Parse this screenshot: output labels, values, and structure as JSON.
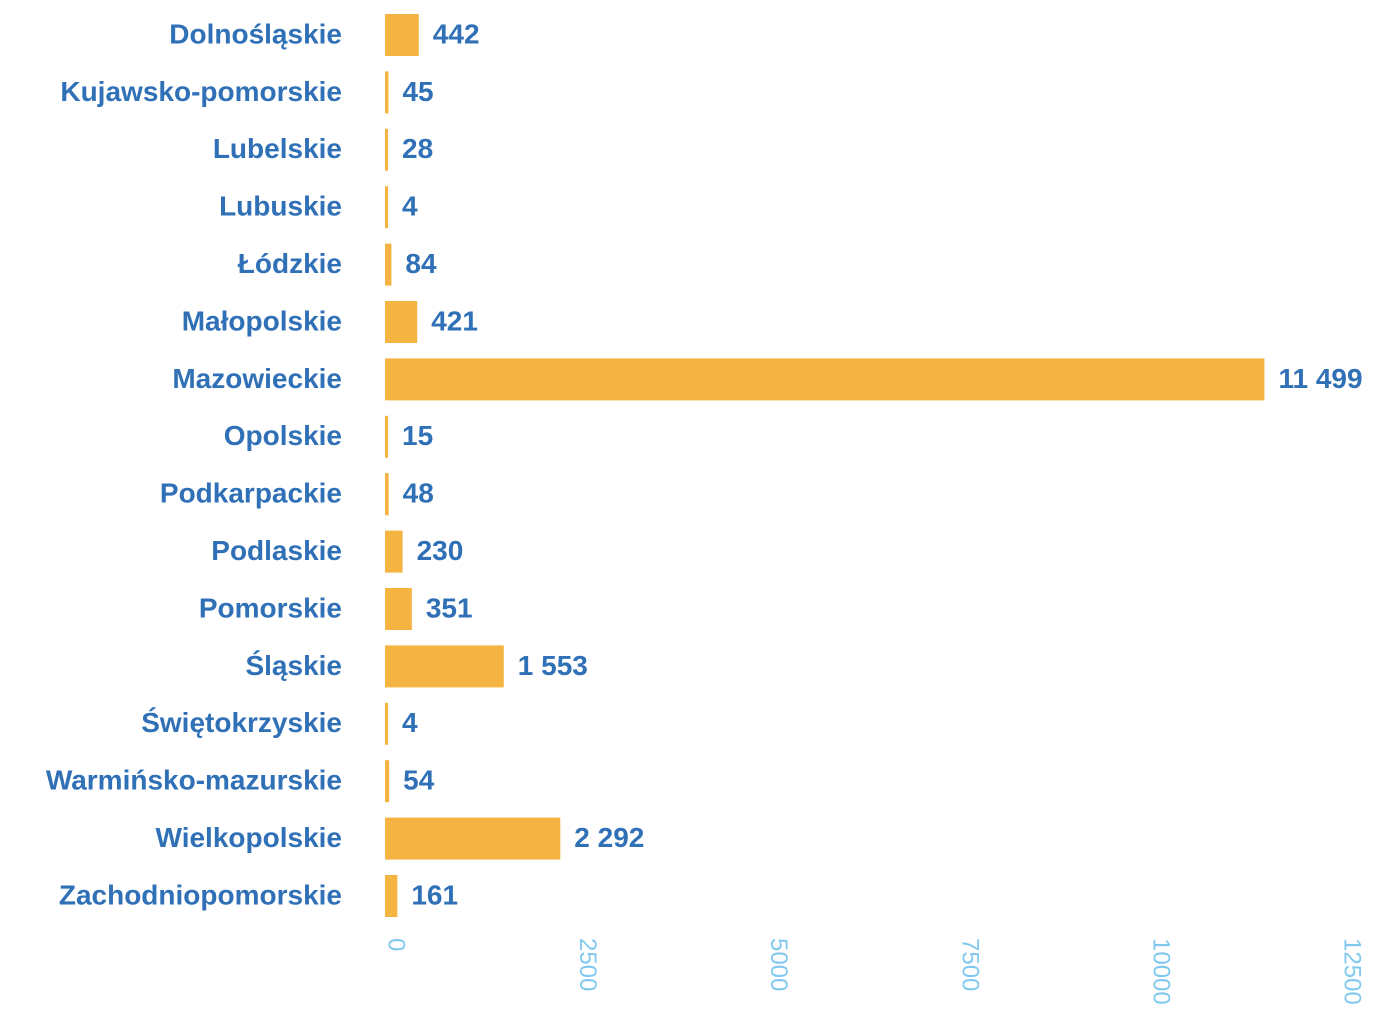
{
  "chart_data": {
    "type": "bar",
    "orientation": "horizontal",
    "categories": [
      "Dolnośląskie",
      "Kujawsko-pomorskie",
      "Lubelskie",
      "Lubuskie",
      "Łódzkie",
      "Małopolskie",
      "Mazowieckie",
      "Opolskie",
      "Podkarpackie",
      "Podlaskie",
      "Pomorskie",
      "Śląskie",
      "Świętokrzyskie",
      "Warmińsko-mazurskie",
      "Wielkopolskie",
      "Zachodniopomorskie"
    ],
    "values": [
      442,
      45,
      28,
      4,
      84,
      421,
      11499,
      15,
      48,
      230,
      351,
      1553,
      4,
      54,
      2292,
      161
    ],
    "value_labels": [
      "442",
      "45",
      "28",
      "4",
      "84",
      "421",
      "11 499",
      "15",
      "48",
      "230",
      "351",
      "1 553",
      "4",
      "54",
      "2 292",
      "161"
    ],
    "color": "#f5b342",
    "xlim": [
      0,
      12500
    ],
    "xticks": [
      0,
      2500,
      5000,
      7500,
      10000,
      12500
    ],
    "grid": false
  }
}
